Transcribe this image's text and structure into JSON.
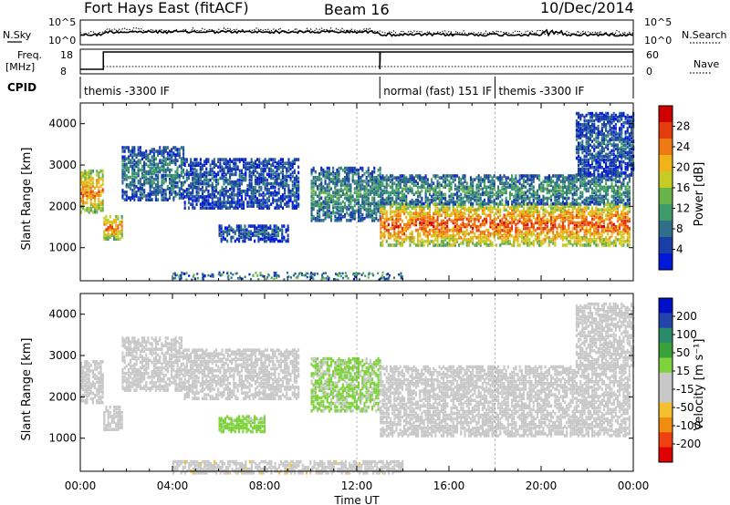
{
  "header": {
    "radar": "Fort Hays East (fitACF)",
    "beam": "Beam 16",
    "date": "10/Dec/2014"
  },
  "top_panels": {
    "nsky_label": "N.Sky",
    "nsearch_label": "N.Search",
    "noise_ticks": [
      "10^5",
      "10^0"
    ],
    "noise_ticks_right": [
      "10^5",
      "10^0"
    ],
    "freq_label": "Freq.",
    "freq_unit": "[MHz]",
    "freq_ticks": [
      "18",
      "8"
    ],
    "nave_label": "Nave",
    "nave_ticks": [
      "60",
      "0"
    ],
    "cpid_label": "CPID",
    "cpid_segments": [
      {
        "label": "themis -3300 IF",
        "start_h": 0.0
      },
      {
        "label": "normal (fast) 151 IF",
        "start_h": 13.0
      },
      {
        "label": "themis -3300 IF",
        "start_h": 18.0
      }
    ]
  },
  "colorbars": {
    "power": {
      "label": "Power [dB]",
      "ticks": [
        "28",
        "24",
        "20",
        "16",
        "12",
        "8",
        "4"
      ],
      "colors": [
        "#0018d8",
        "#1a3ea8",
        "#2f6f8a",
        "#3f9c6a",
        "#6ab24a",
        "#c6cc22",
        "#f0b418",
        "#ef7a14",
        "#e43c0c",
        "#d00000"
      ]
    },
    "velocity": {
      "label": "Velocity [m s⁻¹]",
      "ticks": [
        "200",
        "100",
        "50",
        "15",
        "-15",
        "-50",
        "-100",
        "-200"
      ],
      "colors": [
        "#e00000",
        "#ef4010",
        "#f08c10",
        "#f5c030",
        "#c8c8c8",
        "#c8c8c8",
        "#7ed23c",
        "#3ca03c",
        "#2a8a6a",
        "#2244aa",
        "#0010c8"
      ]
    }
  },
  "axes": {
    "ylabel": "Slant Range [km]",
    "yticks": [
      "4000",
      "3000",
      "2000",
      "1000"
    ],
    "xlabel": "Time UT",
    "xticks": [
      "00:00",
      "04:00",
      "08:00",
      "12:00",
      "16:00",
      "20:00",
      "00:00"
    ]
  },
  "chart_data": [
    {
      "type": "heatmap",
      "name": "power",
      "xlabel": "Time UT",
      "ylabel": "Slant Range [km]",
      "xlim_h": [
        0,
        24
      ],
      "ylim_km": [
        200,
        4500
      ],
      "colorbar_label": "Power [dB]",
      "colorbar_range_db": [
        0,
        30
      ],
      "scatter_bands": [
        {
          "t_start": 0.0,
          "t_end": 1.0,
          "r_low": 1900,
          "r_high": 2900,
          "power_db": 22
        },
        {
          "t_start": 1.0,
          "t_end": 1.8,
          "r_low": 1250,
          "r_high": 1800,
          "power_db": 22
        },
        {
          "t_start": 1.8,
          "t_end": 4.5,
          "r_low": 2200,
          "r_high": 3500,
          "power_db": 8
        },
        {
          "t_start": 4.5,
          "t_end": 9.5,
          "r_low": 2000,
          "r_high": 3200,
          "power_db": 6
        },
        {
          "t_start": 6.0,
          "t_end": 9.0,
          "r_low": 1200,
          "r_high": 1600,
          "power_db": 6
        },
        {
          "t_start": 10.0,
          "t_end": 13.0,
          "r_low": 1700,
          "r_high": 3000,
          "power_db": 10
        },
        {
          "t_start": 13.0,
          "t_end": 23.8,
          "r_low": 1100,
          "r_high": 2100,
          "power_db": 24
        },
        {
          "t_start": 13.0,
          "t_end": 23.8,
          "r_low": 2100,
          "r_high": 2800,
          "power_db": 10
        },
        {
          "t_start": 21.5,
          "t_end": 24.0,
          "r_low": 2800,
          "r_high": 4300,
          "power_db": 6
        }
      ]
    },
    {
      "type": "heatmap",
      "name": "velocity",
      "xlabel": "Time UT",
      "ylabel": "Slant Range [km]",
      "xlim_h": [
        0,
        24
      ],
      "ylim_km": [
        200,
        4500
      ],
      "colorbar_label": "Velocity [m s⁻¹]",
      "colorbar_range_ms": [
        -250,
        250
      ],
      "scatter_bands": [
        {
          "t_start": 0.0,
          "t_end": 1.0,
          "r_low": 1900,
          "r_high": 2900,
          "velocity": 0
        },
        {
          "t_start": 1.0,
          "t_end": 1.8,
          "r_low": 1250,
          "r_high": 1800,
          "velocity": 0
        },
        {
          "t_start": 1.8,
          "t_end": 4.5,
          "r_low": 2200,
          "r_high": 3500,
          "velocity": -40
        },
        {
          "t_start": 4.5,
          "t_end": 9.5,
          "r_low": 2000,
          "r_high": 3200,
          "velocity": -20
        },
        {
          "t_start": 6.0,
          "t_end": 8.0,
          "r_low": 1200,
          "r_high": 1600,
          "velocity": 40
        },
        {
          "t_start": 10.0,
          "t_end": 13.0,
          "r_low": 1700,
          "r_high": 3000,
          "velocity": 30
        },
        {
          "t_start": 13.0,
          "t_end": 23.8,
          "r_low": 1100,
          "r_high": 2800,
          "velocity": 0
        },
        {
          "t_start": 4.0,
          "t_end": 14.0,
          "r_low": 200,
          "r_high": 500,
          "velocity": -50
        },
        {
          "t_start": 21.5,
          "t_end": 24.0,
          "r_low": 2800,
          "r_high": 4300,
          "velocity": -30
        }
      ]
    }
  ]
}
